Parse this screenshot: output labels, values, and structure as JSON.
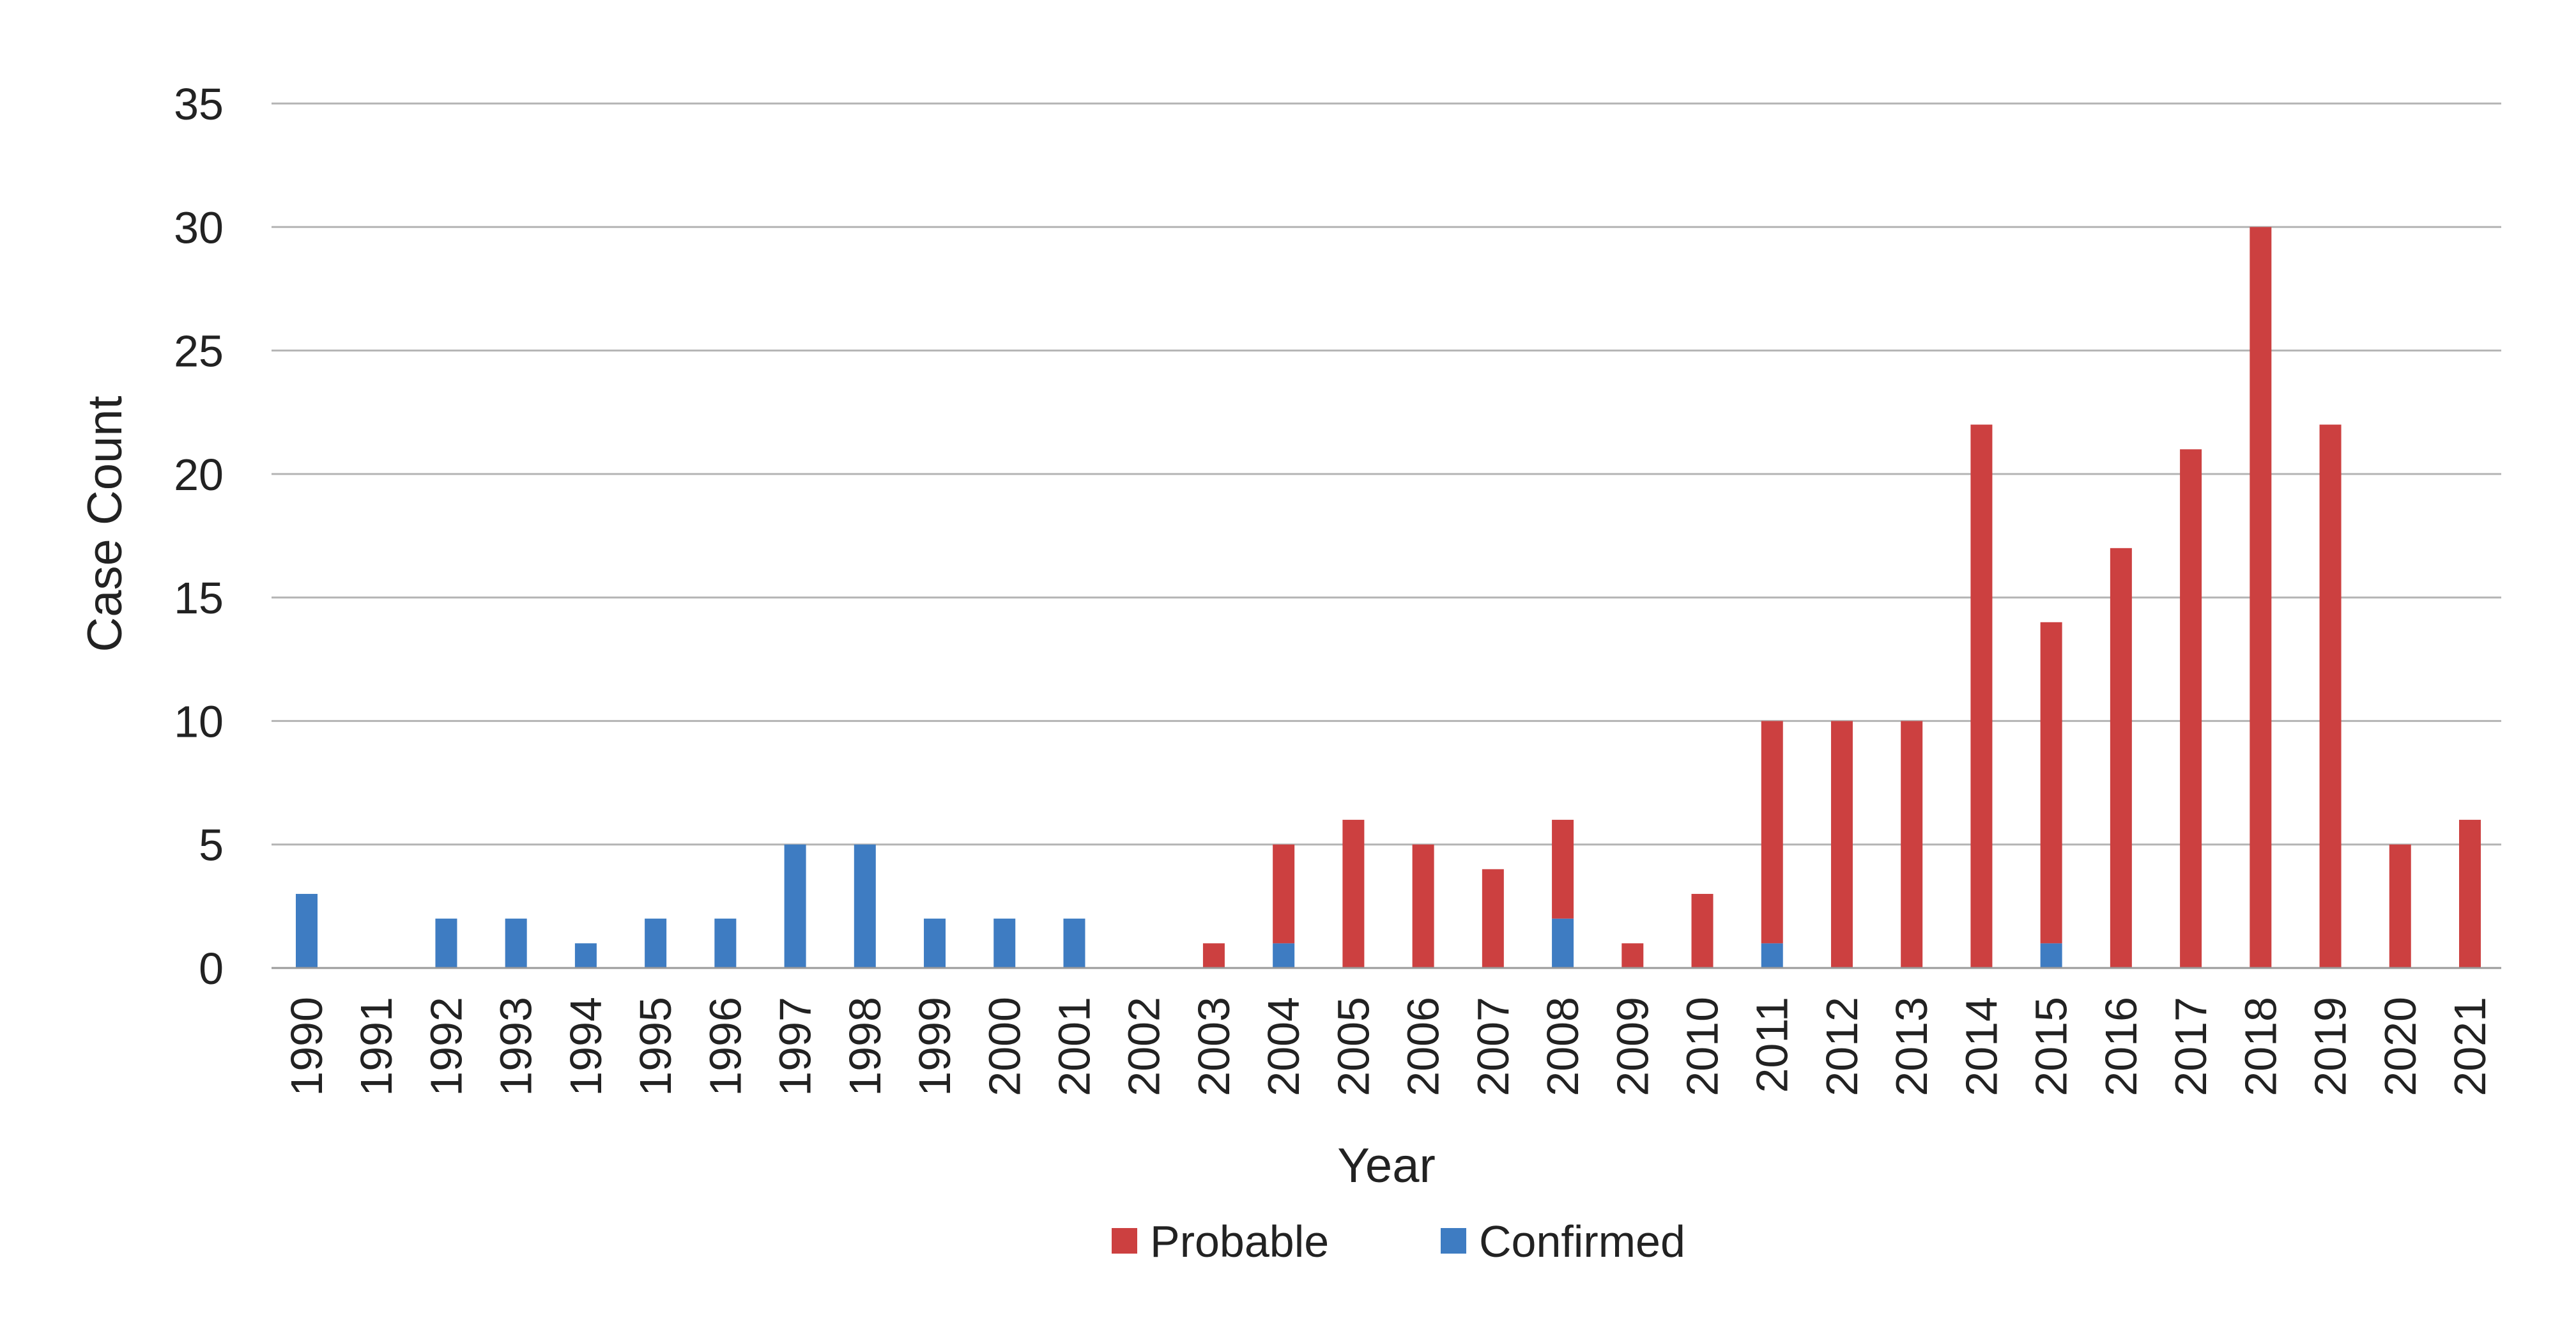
{
  "chart_data": {
    "type": "bar",
    "stacked": true,
    "title": "",
    "xlabel": "Year",
    "ylabel": "Case Count",
    "ylim": [
      0,
      35
    ],
    "yticks": [
      0,
      5,
      10,
      15,
      20,
      25,
      30,
      35
    ],
    "grid": true,
    "legend_position": "bottom",
    "categories": [
      "1990",
      "1991",
      "1992",
      "1993",
      "1994",
      "1995",
      "1996",
      "1997",
      "1998",
      "1999",
      "2000",
      "2001",
      "2002",
      "2003",
      "2004",
      "2005",
      "2006",
      "2007",
      "2008",
      "2009",
      "2010",
      "2011",
      "2012",
      "2013",
      "2014",
      "2015",
      "2016",
      "2017",
      "2018",
      "2019",
      "2020",
      "2021"
    ],
    "series": [
      {
        "name": "Confirmed",
        "color": "#3e7cc2",
        "values": [
          3,
          0,
          2,
          2,
          1,
          2,
          2,
          5,
          5,
          2,
          2,
          2,
          0,
          0,
          1,
          0,
          0,
          0,
          2,
          0,
          0,
          1,
          0,
          0,
          0,
          1,
          0,
          0,
          0,
          0,
          0,
          0
        ]
      },
      {
        "name": "Probable",
        "color": "#cc4040",
        "values": [
          0,
          0,
          0,
          0,
          0,
          0,
          0,
          0,
          0,
          0,
          0,
          0,
          0,
          1,
          4,
          6,
          5,
          4,
          4,
          1,
          3,
          9,
          10,
          10,
          22,
          13,
          17,
          21,
          30,
          22,
          5,
          6
        ]
      }
    ],
    "legend": [
      "Probable",
      "Confirmed"
    ]
  }
}
